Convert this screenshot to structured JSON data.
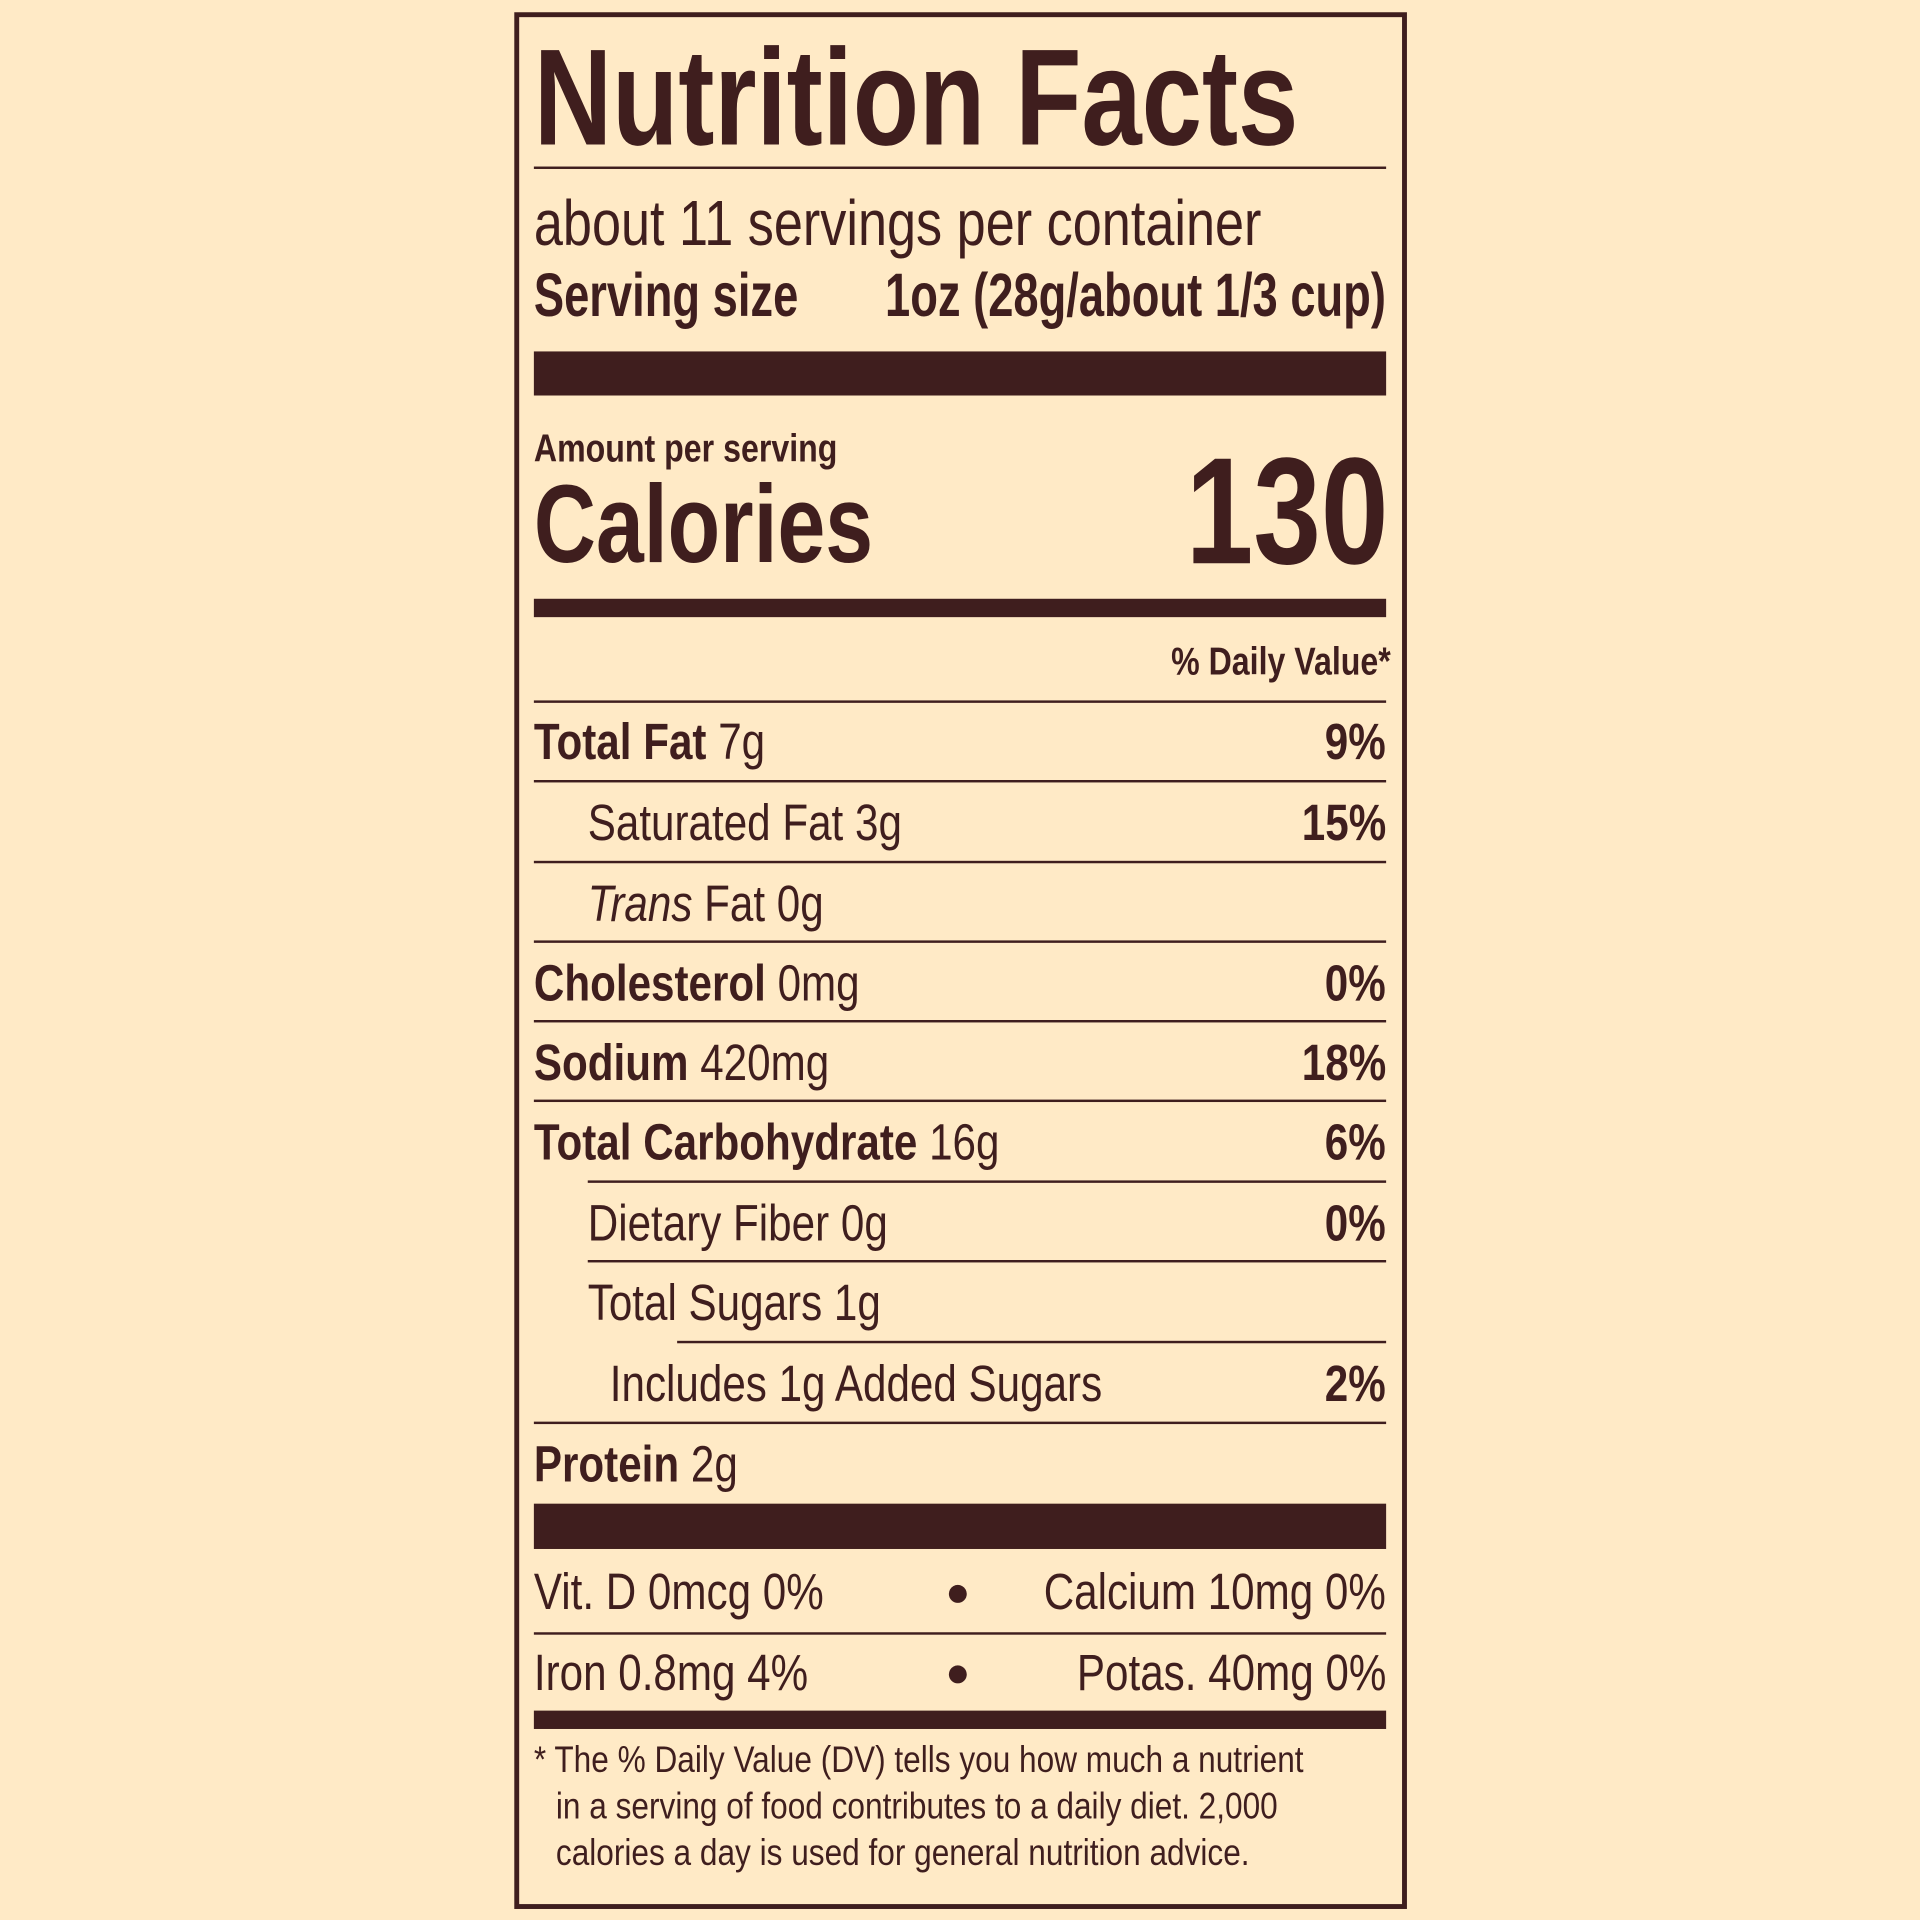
{
  "title": "Nutrition Facts",
  "servings_per_container": "about 11 servings per container",
  "serving_size": {
    "label": "Serving size",
    "value": "1oz (28g/about 1/3 cup)"
  },
  "amount_per_serving": "Amount per serving",
  "calories": {
    "label": "Calories",
    "value": "130"
  },
  "daily_value_header": "% Daily Value*",
  "nutrients": [
    {
      "name": "Total Fat",
      "amount": "7g",
      "dv": "9%"
    },
    {
      "name": "Saturated Fat",
      "amount": "3g",
      "dv": "15%"
    },
    {
      "name": "Trans",
      "name_suffix": "Fat",
      "amount": "0g",
      "dv": ""
    },
    {
      "name": "Cholesterol",
      "amount": "0mg",
      "dv": "0%"
    },
    {
      "name": "Sodium",
      "amount": "420mg",
      "dv": "18%"
    },
    {
      "name": "Total Carbohydrate",
      "amount": "16g",
      "dv": "6%"
    },
    {
      "name": "Dietary Fiber",
      "amount": "0g",
      "dv": "0%"
    },
    {
      "name": "Total Sugars",
      "amount": "1g",
      "dv": ""
    },
    {
      "name": "Includes 1g Added Sugars",
      "amount": "",
      "dv": "2%"
    },
    {
      "name": "Protein",
      "amount": "2g",
      "dv": ""
    }
  ],
  "vitamins": [
    {
      "left": "Vit. D 0mcg 0%",
      "right": "Calcium 10mg 0%"
    },
    {
      "left": "Iron 0.8mg 4%",
      "right": "Potas. 40mg 0%"
    }
  ],
  "footnote": [
    "* The % Daily Value (DV) tells you how much a nutrient",
    "in a serving of food contributes to a daily diet. 2,000",
    "calories a day is used for general nutrition advice."
  ],
  "colors": {
    "background": "#FFEAC6",
    "ink": "#3F1E1E"
  }
}
